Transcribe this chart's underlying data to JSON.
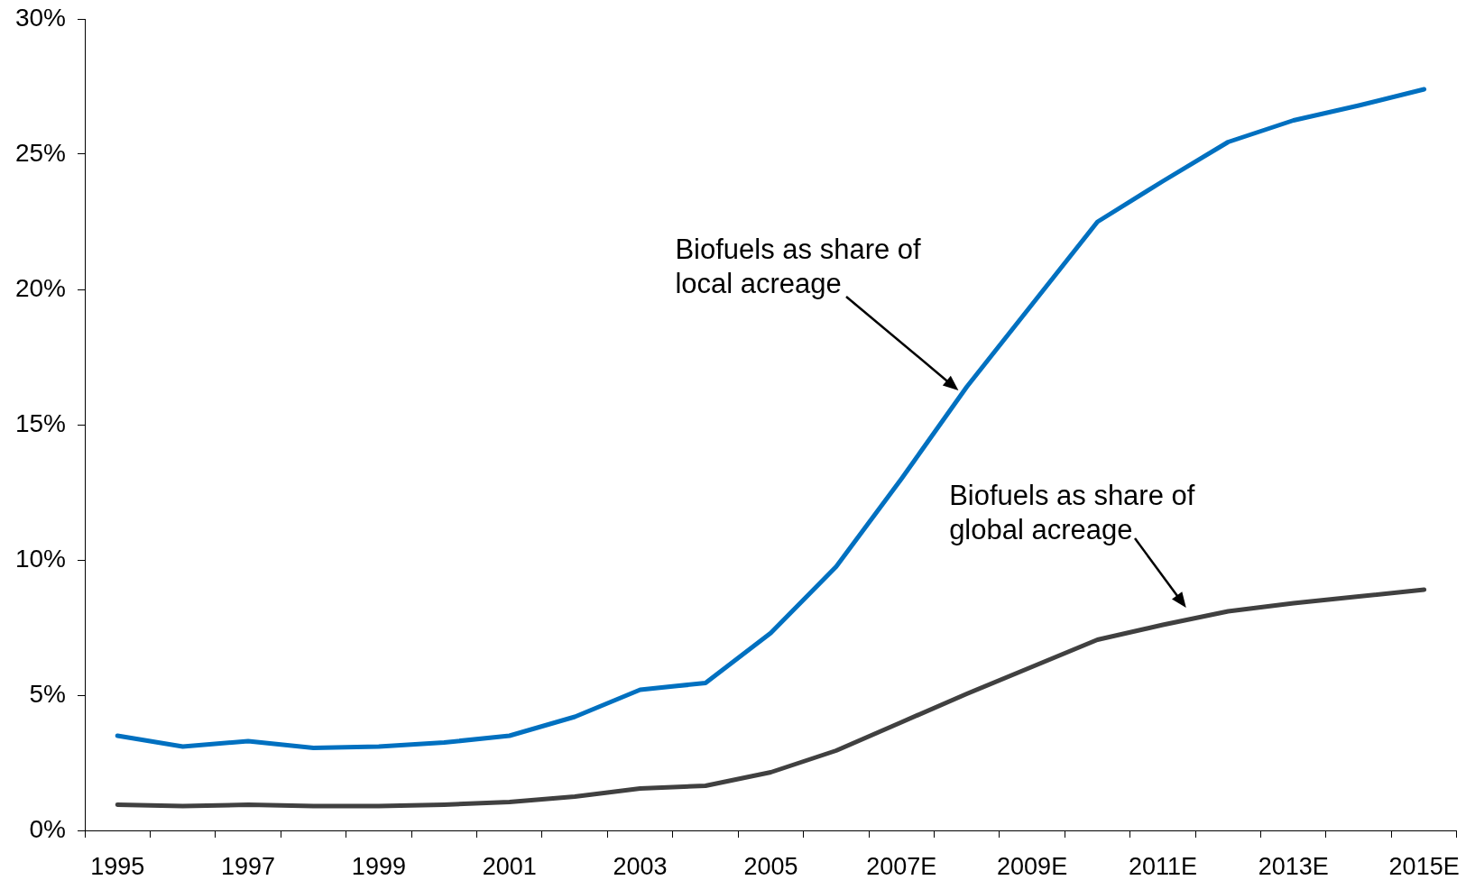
{
  "chart_data": {
    "type": "line",
    "categories": [
      "1995",
      null,
      "1997",
      null,
      "1999",
      null,
      "2001",
      null,
      "2003",
      null,
      "2005",
      null,
      "2007E",
      null,
      "2009E",
      null,
      "2011E",
      null,
      "2013E",
      null,
      "2015E"
    ],
    "series": [
      {
        "color": "#0070c0",
        "values": [
          3.5,
          3.1,
          3.3,
          3.05,
          3.1,
          3.25,
          3.5,
          4.2,
          5.2,
          5.45,
          7.3,
          9.75,
          13.0,
          16.4,
          19.45,
          22.5,
          24.0,
          25.45,
          26.25,
          26.8,
          27.4
        ]
      },
      {
        "color": "#404040",
        "values": [
          0.95,
          0.9,
          0.95,
          0.9,
          0.9,
          0.95,
          1.05,
          1.25,
          1.55,
          1.65,
          2.15,
          2.95,
          4.0,
          5.05,
          6.05,
          7.05,
          7.6,
          8.1,
          8.4,
          8.65,
          8.9
        ]
      }
    ],
    "ylim": [
      0,
      30
    ],
    "yticks": [
      {
        "value": 0,
        "label": "0%"
      },
      {
        "value": 5,
        "label": "5%"
      },
      {
        "value": 10,
        "label": "10%"
      },
      {
        "value": 15,
        "label": "15%"
      },
      {
        "value": 20,
        "label": "20%"
      },
      {
        "value": 25,
        "label": "25%"
      },
      {
        "value": 30,
        "label": "30%"
      }
    ],
    "annotations": [
      "Biofuels as share of local acreage",
      "Biofuels as share of global acreage"
    ]
  }
}
